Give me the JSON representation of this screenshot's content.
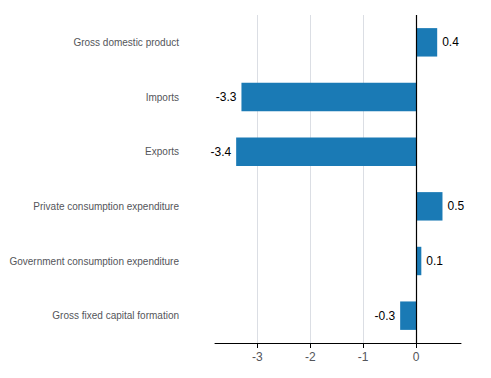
{
  "chart_data": {
    "type": "bar",
    "orientation": "horizontal",
    "categories": [
      "Gross fixed capital formation",
      "Government consumption expenditure",
      "Private consumption expenditure",
      "Exports",
      "Imports",
      "Gross domestic product"
    ],
    "values": [
      -0.3,
      0.1,
      0.5,
      -3.4,
      -3.3,
      0.4
    ],
    "color": "#1a7ab5",
    "xlim": [
      -3.8,
      0.85
    ],
    "xticks": [
      -3,
      -2,
      -1,
      0
    ],
    "grid": true,
    "data_labels": true
  }
}
